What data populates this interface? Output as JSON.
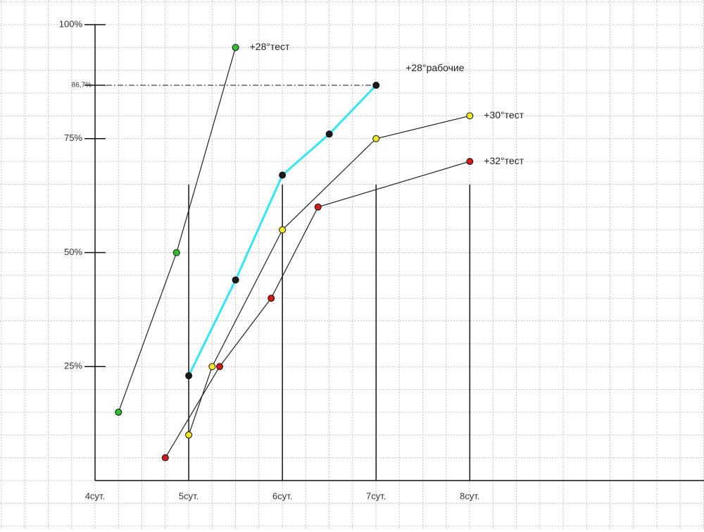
{
  "chart_data": {
    "type": "line",
    "xlim": [
      4,
      10.5
    ],
    "ylim": [
      0,
      100
    ],
    "xticks": [
      {
        "value": 4,
        "label": "4сут."
      },
      {
        "value": 5,
        "label": "5сут."
      },
      {
        "value": 6,
        "label": "6сут."
      },
      {
        "value": 7,
        "label": "7сут."
      },
      {
        "value": 8,
        "label": "8сут."
      }
    ],
    "yticks": [
      {
        "value": 25,
        "label": "25%"
      },
      {
        "value": 50,
        "label": "50%"
      },
      {
        "value": 75,
        "label": "75%"
      },
      {
        "value": 100,
        "label": "100%"
      }
    ],
    "reference_line": {
      "value": 86.7,
      "label": "86,7%"
    },
    "grid": true,
    "series": [
      {
        "name": "+28°тест",
        "line_color": "#222222",
        "color": "#2fbf2f",
        "x": [
          4.25,
          4.87,
          5.5
        ],
        "values": [
          15,
          50,
          95
        ]
      },
      {
        "name": "+28°рабочие",
        "line_color": "#33e6f2",
        "color": "#1a1a1a",
        "x": [
          5,
          5.5,
          6,
          6.5,
          7
        ],
        "values": [
          23,
          44,
          67,
          76,
          86.7
        ]
      },
      {
        "name": "+30°тест",
        "line_color": "#222222",
        "color": "#f2e62a",
        "x": [
          5,
          5.25,
          6,
          7,
          8
        ],
        "values": [
          10,
          25,
          55,
          75,
          80
        ]
      },
      {
        "name": "+32°тест",
        "line_color": "#222222",
        "color": "#d11a1a",
        "x": [
          4.75,
          5.33,
          5.88,
          6.38,
          8
        ],
        "values": [
          5,
          25,
          40,
          60,
          70
        ]
      }
    ]
  }
}
